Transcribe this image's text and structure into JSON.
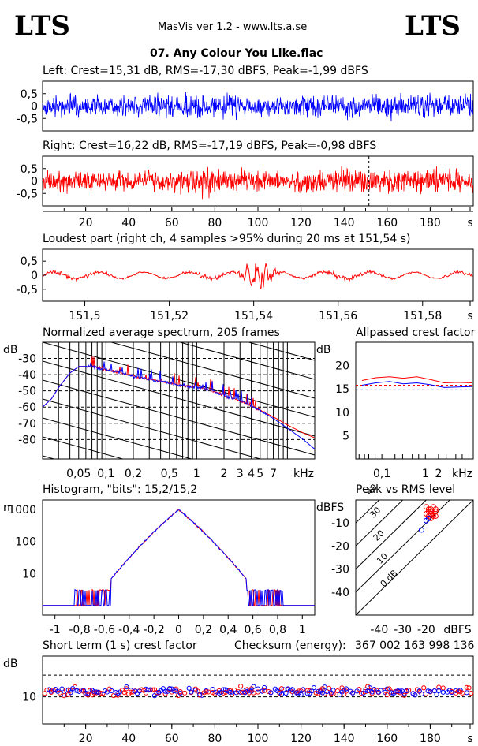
{
  "header": {
    "logo_left": "LTS",
    "logo_right": "LTS",
    "app_title": "MasVis ver 1.2 - www.lts.a.se",
    "track_title": "07. Any Colour You Like.flac"
  },
  "colors": {
    "left": "#0000ff",
    "right": "#ff0000",
    "axis": "#000000"
  },
  "chart_data": [
    {
      "id": "left",
      "type": "area",
      "title": "Left: Crest=15,31 dB, RMS=-17,30 dBFS, Peak=-1,99 dBFS",
      "yticks": [
        "0,5",
        "0",
        "-0,5"
      ],
      "ylim": [
        -1,
        1
      ],
      "xlim": [
        0,
        200
      ],
      "envelope_description_free": true,
      "series": [
        {
          "name": "",
          "color": "#0000ff",
          "amplitude_profile": [
            0.6,
            0.62,
            0.6,
            0.62,
            0.64,
            0.66,
            0.7,
            0.85,
            0.72,
            0.65,
            0.55,
            0.62,
            0.66,
            0.7,
            0.72,
            0.7,
            0.72,
            0.73,
            0.7,
            0.68
          ]
        }
      ]
    },
    {
      "id": "right",
      "type": "area",
      "title": "Right: Crest=16,22 dB, RMS=-17,19 dBFS, Peak=-0,98 dBFS",
      "yticks": [
        "0,5",
        "0",
        "-0,5"
      ],
      "xticks": [
        "20",
        "40",
        "60",
        "80",
        "100",
        "120",
        "140",
        "160",
        "180",
        "s"
      ],
      "ylim": [
        -1,
        1
      ],
      "xlim": [
        0,
        200
      ],
      "marker_x": 151.54,
      "series": [
        {
          "name": "",
          "color": "#ff0000",
          "amplitude_profile": [
            0.62,
            0.63,
            0.62,
            0.63,
            0.65,
            0.68,
            0.72,
            0.85,
            0.74,
            0.66,
            0.56,
            0.63,
            0.67,
            0.72,
            0.75,
            0.72,
            0.74,
            0.75,
            0.72,
            0.7
          ]
        }
      ]
    },
    {
      "id": "loudest",
      "type": "line",
      "title": "Loudest part (right ch, 4 samples >95% during 20 ms at 151,54 s)",
      "yticks": [
        "0,5",
        "0",
        "-0,5"
      ],
      "xticks": [
        "151,5",
        "151,52",
        "151,54",
        "151,56",
        "151,58",
        "s"
      ],
      "xlim": [
        151.49,
        151.592
      ],
      "ylim": [
        -1,
        1
      ]
    },
    {
      "id": "spectrum",
      "type": "line",
      "title": "Normalized average spectrum, 205 frames",
      "ylabel": "dB",
      "yticks": [
        "-30",
        "-40",
        "-50",
        "-60",
        "-70",
        "-80"
      ],
      "xticks": [
        "0,05",
        "0,1",
        "0,2",
        "0,5",
        "1",
        "2",
        "3",
        "4",
        "5",
        "7",
        "kHz"
      ],
      "ylim": [
        -92,
        -20
      ],
      "xlim_khz": [
        0.02,
        20
      ],
      "series": [
        {
          "name": "",
          "color": "#ff0000",
          "x_khz": [
            0.02,
            0.025,
            0.03,
            0.04,
            0.05,
            0.07,
            0.1,
            0.15,
            0.2,
            0.3,
            0.5,
            0.7,
            1,
            1.5,
            2,
            3,
            5,
            7,
            10,
            15,
            20
          ],
          "y": [
            -60,
            -55,
            -48,
            -39,
            -35,
            -35,
            -37,
            -39,
            -41,
            -43,
            -45,
            -47,
            -48,
            -50,
            -53,
            -56,
            -62,
            -66,
            -71,
            -76,
            -79
          ]
        },
        {
          "name": "",
          "color": "#0000ff",
          "x_khz": [
            0.02,
            0.025,
            0.03,
            0.04,
            0.05,
            0.07,
            0.1,
            0.15,
            0.2,
            0.3,
            0.5,
            0.7,
            1,
            1.5,
            2,
            3,
            5,
            7,
            10,
            15,
            20
          ],
          "y": [
            -60,
            -55,
            -48,
            -39,
            -35,
            -35,
            -37,
            -39,
            -41,
            -43,
            -45,
            -47,
            -48,
            -50,
            -53,
            -56,
            -62,
            -67,
            -73,
            -80,
            -86
          ]
        }
      ]
    },
    {
      "id": "allpass",
      "type": "line",
      "title": "Allpassed crest factor",
      "ylabel": "dB",
      "yticks": [
        "20",
        "15",
        "10",
        "5"
      ],
      "xticks": [
        "0,1",
        "1",
        "2",
        "kHz"
      ],
      "ylim": [
        0,
        25
      ],
      "series": [
        {
          "name": "",
          "color": "#ff0000",
          "y": [
            16.8,
            17.4,
            17.6,
            17.3,
            17.6,
            17.0,
            16.3,
            16.4,
            16.3
          ]
        },
        {
          "name": "",
          "color": "#0000ff",
          "y": [
            15.8,
            16.3,
            16.6,
            16.1,
            16.3,
            15.9,
            15.3,
            15.4,
            15.5
          ]
        }
      ]
    },
    {
      "id": "histogram",
      "type": "line",
      "title": "Histogram, \"bits\": 15,2/15,2",
      "ylabel": "n",
      "yticks": [
        "1000",
        "100",
        "10"
      ],
      "xticks": [
        "-1",
        "-0,8",
        "-0,6",
        "-0,4",
        "-0,2",
        "0",
        "0,2",
        "0,4",
        "0,6",
        "0,8",
        "1"
      ],
      "xlim": [
        -1.1,
        1.1
      ],
      "peak_n": 1000
    },
    {
      "id": "peak_vs_rms",
      "type": "scatter",
      "title": "Peak vs RMS level",
      "ylabel": "dBFS",
      "yticks": [
        "-10",
        "-20",
        "-30",
        "-40"
      ],
      "xticks": [
        "-40",
        "-30",
        "-20",
        "dBFS"
      ],
      "diagonal_labels": [
        "40",
        "30",
        "20",
        "10",
        "0 dB"
      ],
      "series": [
        {
          "name": "",
          "color": "#ff0000",
          "x": [
            -20,
            -19,
            -18,
            -17,
            -16,
            -19,
            -18,
            -20,
            -17,
            -16,
            -18,
            -19,
            -17,
            -18,
            -16
          ],
          "y": [
            -6,
            -7,
            -5,
            -6,
            -5,
            -4,
            -8,
            -3,
            -7,
            -4,
            -6,
            -5,
            -3,
            -4,
            -7
          ]
        },
        {
          "name": "",
          "color": "#0000ff",
          "x": [
            -22,
            -20,
            -19
          ],
          "y": [
            -13,
            -9,
            -8
          ]
        }
      ]
    },
    {
      "id": "crest_short",
      "type": "scatter",
      "title": "Short term (1 s) crest factor",
      "checksum_label": "Checksum (energy):",
      "checksum_value": "367 002 163 998 136",
      "ylabel": "dB",
      "yticks": [
        "10"
      ],
      "xticks": [
        "20",
        "40",
        "60",
        "80",
        "100",
        "120",
        "140",
        "160",
        "180",
        "s"
      ],
      "xlim": [
        0,
        200
      ],
      "ylim": [
        0,
        25
      ]
    }
  ]
}
